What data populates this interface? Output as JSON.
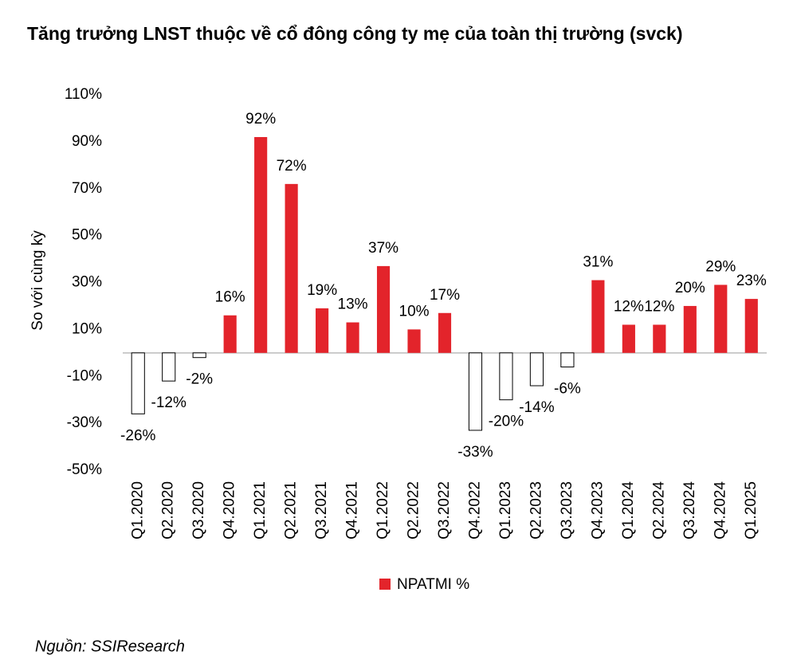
{
  "chart_data": {
    "type": "bar",
    "title": "Tăng trưởng LNST thuộc về cổ đông công ty mẹ của toàn thị trường (svck)",
    "y_label": "So với cùng kỳ",
    "source": "Nguồn: SSIResearch",
    "categories": [
      "Q1.2020",
      "Q2.2020",
      "Q3.2020",
      "Q4.2020",
      "Q1.2021",
      "Q2.2021",
      "Q3.2021",
      "Q4.2021",
      "Q1.2022",
      "Q2.2022",
      "Q3.2022",
      "Q4.2022",
      "Q1.2023",
      "Q2.2023",
      "Q3.2023",
      "Q4.2023",
      "Q1.2024",
      "Q2.2024",
      "Q3.2024",
      "Q4.2024",
      "Q1.2025"
    ],
    "series": [
      {
        "name": "NPATMI %",
        "color": "#e3242b",
        "negative_color": "#ffffff",
        "values": [
          -26,
          -12,
          -2,
          16,
          92,
          72,
          19,
          13,
          37,
          10,
          17,
          -33,
          -20,
          -14,
          -6,
          31,
          12,
          12,
          20,
          29,
          23
        ],
        "value_labels": [
          "-26%",
          "-12%",
          "-2%",
          "16%",
          "92%",
          "72%",
          "19%",
          "13%",
          "37%",
          "10%",
          "17%",
          "-33%",
          "-20%",
          "-14%",
          "-6%",
          "31%",
          "12%",
          "12%",
          "20%",
          "29%",
          "23%"
        ]
      }
    ],
    "ylim": [
      -50,
      110
    ],
    "yticks": [
      {
        "value": -50,
        "label": "-50%"
      },
      {
        "value": -30,
        "label": "-30%"
      },
      {
        "value": -10,
        "label": "-10%"
      },
      {
        "value": 10,
        "label": "10%"
      },
      {
        "value": 30,
        "label": "30%"
      },
      {
        "value": 50,
        "label": "50%"
      },
      {
        "value": 70,
        "label": "70%"
      },
      {
        "value": 90,
        "label": "90%"
      },
      {
        "value": 110,
        "label": "110%"
      }
    ],
    "grid": false
  }
}
